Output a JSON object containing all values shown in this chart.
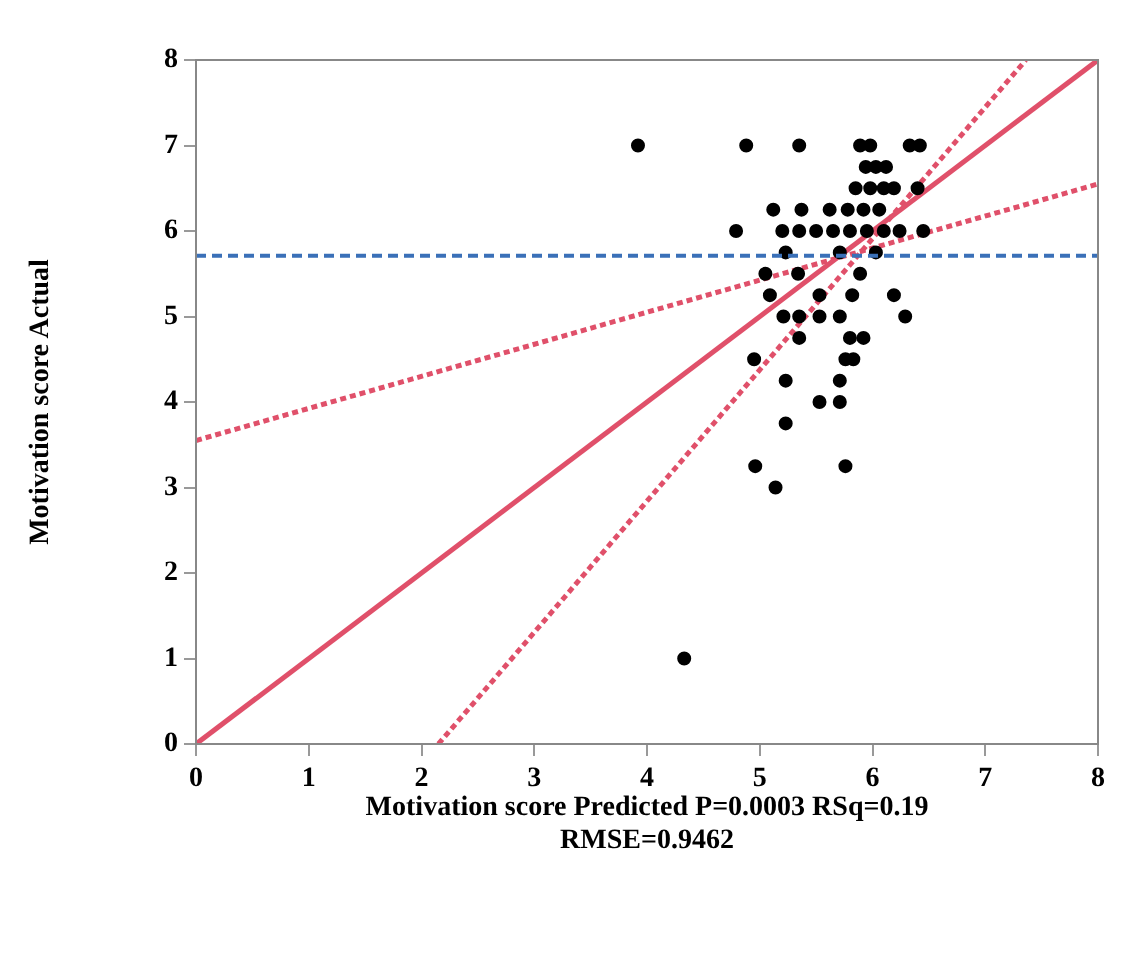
{
  "chart_data": {
    "type": "scatter",
    "xlabel": "Motivation score Predicted P=0.0003 RSq=0.19\nRMSE=0.9462",
    "ylabel": "Motivation score Actual",
    "xlim": [
      0,
      8
    ],
    "ylim": [
      0,
      8
    ],
    "xticks": [
      0,
      1,
      2,
      3,
      4,
      5,
      6,
      7,
      8
    ],
    "yticks": [
      0,
      1,
      2,
      3,
      4,
      5,
      6,
      7,
      8
    ],
    "grid": false,
    "legend": false,
    "marker": "circle",
    "series": [
      {
        "color": "#000000",
        "x": [
          3.92,
          4.88,
          5.35,
          5.89,
          5.98,
          6.33,
          6.42,
          5.94,
          6.03,
          6.12,
          5.85,
          5.98,
          6.1,
          6.19,
          6.4,
          5.12,
          5.37,
          5.62,
          5.78,
          5.92,
          6.06,
          4.79,
          5.2,
          5.35,
          5.5,
          5.65,
          5.8,
          5.95,
          6.1,
          6.24,
          6.45,
          5.23,
          5.71,
          6.03,
          5.05,
          5.34,
          5.89,
          5.09,
          5.53,
          5.82,
          6.19,
          5.21,
          5.35,
          5.53,
          5.71,
          6.29,
          5.35,
          5.8,
          5.92,
          4.95,
          5.76,
          5.83,
          5.23,
          5.71,
          5.53,
          5.71,
          5.23,
          4.96,
          5.76,
          5.14,
          4.33
        ],
        "values": [
          7,
          7,
          7,
          7,
          7,
          7,
          7,
          6.75,
          6.75,
          6.75,
          6.5,
          6.5,
          6.5,
          6.5,
          6.5,
          6.25,
          6.25,
          6.25,
          6.25,
          6.25,
          6.25,
          6,
          6,
          6,
          6,
          6,
          6,
          6,
          6,
          6,
          6,
          5.75,
          5.75,
          5.75,
          5.5,
          5.5,
          5.5,
          5.25,
          5.25,
          5.25,
          5.25,
          5,
          5,
          5,
          5,
          5,
          4.75,
          4.75,
          4.75,
          4.5,
          4.5,
          4.5,
          4.25,
          4.25,
          4,
          4,
          3.75,
          3.25,
          3.25,
          3,
          1
        ]
      },
      {
        "type": "line",
        "color": "#e0506a",
        "line_style": "solid",
        "marker": "none",
        "x": [
          0,
          8
        ],
        "values": [
          0,
          8
        ]
      },
      {
        "type": "line",
        "color": "#e0506a",
        "line_style": "dotted",
        "marker": "none",
        "x": [
          0,
          8
        ],
        "values": [
          3.55,
          6.55
        ]
      },
      {
        "type": "line",
        "color": "#e0506a",
        "line_style": "dotted",
        "marker": "none",
        "x": [
          2.15,
          7.36
        ],
        "values": [
          0,
          8
        ]
      }
    ],
    "ref_lines": [
      {
        "axis": "y",
        "value": 5.71,
        "color": "#3a70b8",
        "line_style": "dashed"
      }
    ]
  }
}
